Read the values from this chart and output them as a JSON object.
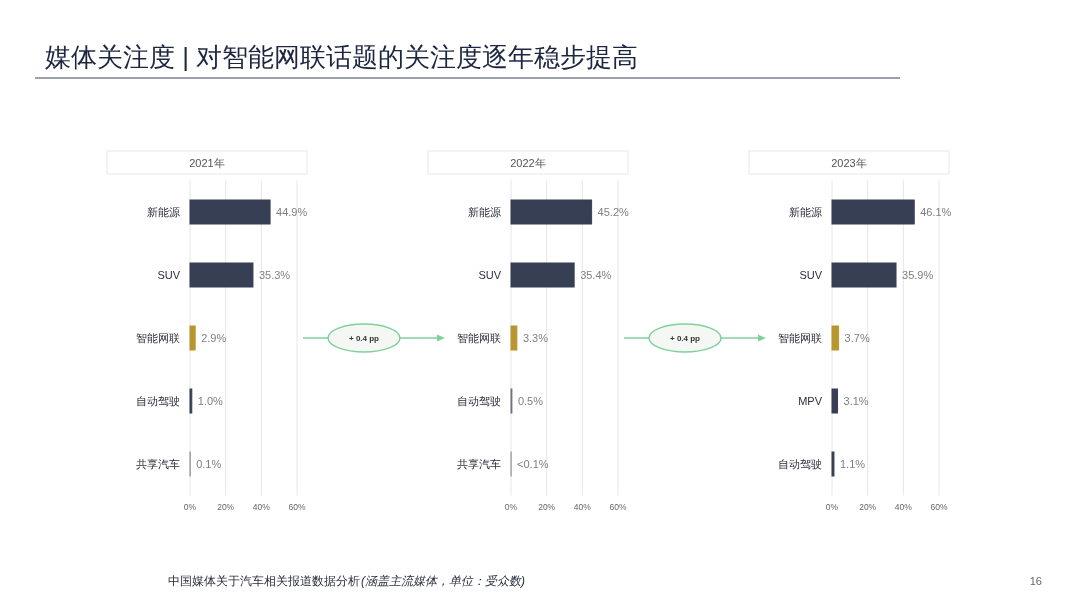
{
  "chart_data": [
    {
      "type": "other",
      "title": "媒体关注度 | 对智能网联话题的关注度逐年稳步提高",
      "annotations": [
        "中国媒体关于汽车相关报道数据分析",
        "(涵盖主流媒体，单位：受众数)",
        "16"
      ]
    },
    {
      "type": "bar",
      "orientation": "horizontal",
      "title": "2021年",
      "categories": [
        "新能源",
        "SUV",
        "智能网联",
        "自动驾驶",
        "共享汽车"
      ],
      "values": [
        44.9,
        35.3,
        2.9,
        1.0,
        0.1
      ],
      "colors": [
        "#373f54",
        "#373f54",
        "#b8952f",
        "#373f54",
        "#8c8c8c"
      ],
      "value_labels": [
        "44.9%",
        "35.3%",
        "2.9%",
        "1.0%",
        "0.1%"
      ],
      "xlim": [
        0,
        60
      ],
      "xticks": [
        {
          "value": 0,
          "label": "0%"
        },
        {
          "value": 20,
          "label": "20%"
        },
        {
          "value": 40,
          "label": "40%"
        },
        {
          "value": 60,
          "label": "60%"
        }
      ],
      "grid": "x"
    },
    {
      "type": "bar",
      "orientation": "horizontal",
      "title": "2022年",
      "categories": [
        "新能源",
        "SUV",
        "智能网联",
        "自动驾驶",
        "共享汽车"
      ],
      "values": [
        45.2,
        35.4,
        3.3,
        0.5,
        0.05
      ],
      "colors": [
        "#373f54",
        "#373f54",
        "#b8952f",
        "#6e7280",
        "#8c8c8c"
      ],
      "value_labels": [
        "45.2%",
        "35.4%",
        "3.3%",
        "0.5%",
        "<0.1%"
      ],
      "xlim": [
        0,
        60
      ],
      "xticks": [
        {
          "value": 0,
          "label": "0%"
        },
        {
          "value": 20,
          "label": "20%"
        },
        {
          "value": 40,
          "label": "40%"
        },
        {
          "value": 60,
          "label": "60%"
        }
      ],
      "grid": "x",
      "annotations": [
        "+ 0.4 pp"
      ]
    },
    {
      "type": "bar",
      "orientation": "horizontal",
      "title": "2023年",
      "categories": [
        "新能源",
        "SUV",
        "智能网联",
        "MPV",
        "自动驾驶"
      ],
      "values": [
        46.1,
        35.9,
        3.7,
        3.1,
        1.1
      ],
      "colors": [
        "#373f54",
        "#373f54",
        "#b8952f",
        "#373f54",
        "#373f54"
      ],
      "value_labels": [
        "46.1%",
        "35.9%",
        "3.7%",
        "3.1%",
        "1.1%"
      ],
      "xlim": [
        0,
        60
      ],
      "xticks": [
        {
          "value": 0,
          "label": "0%"
        },
        {
          "value": 20,
          "label": "20%"
        },
        {
          "value": 40,
          "label": "40%"
        },
        {
          "value": 60,
          "label": "60%"
        }
      ],
      "grid": "x",
      "annotations": [
        "+ 0.4 pp"
      ]
    }
  ]
}
